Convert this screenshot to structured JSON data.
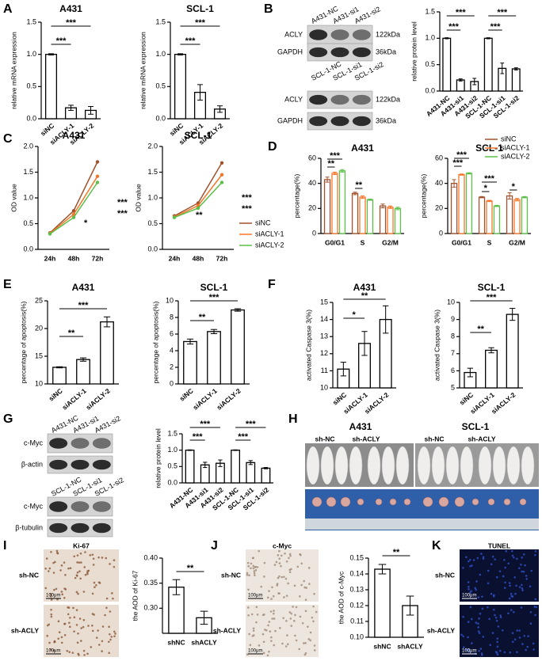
{
  "panel_labels": [
    "A",
    "B",
    "C",
    "D",
    "E",
    "F",
    "G",
    "H",
    "I",
    "J",
    "K"
  ],
  "blots": [
    {
      "lanes": [
        "A431-NC",
        "A431-si1",
        "A431-si2"
      ],
      "rows": [
        {
          "name": "ACLY",
          "size": "122kDa"
        },
        {
          "name": "GAPDH",
          "size": "36kDa"
        }
      ]
    },
    {
      "lanes": [
        "SCL-1-NC",
        "SCL-1-si1",
        "SCL-1-si2"
      ],
      "rows": [
        {
          "name": "ACLY",
          "size": "122kDa"
        },
        {
          "name": "GAPDH",
          "size": "36kDa"
        }
      ]
    },
    {
      "lanes": [
        "A431-NC",
        "A431-si1",
        "A431-si2"
      ],
      "rows": [
        {
          "name": "c-Myc"
        },
        {
          "name": "β-actin"
        }
      ]
    },
    {
      "lanes": [
        "SCL-1-NC",
        "SCL-1-si1",
        "SCL-1-si2"
      ],
      "rows": [
        {
          "name": "c-Myc"
        },
        {
          "name": "β-tubulin"
        }
      ]
    }
  ],
  "xenograft": [
    {
      "title": "A431",
      "conditions": [
        "sh-NC",
        "sh-ACLY"
      ]
    },
    {
      "title": "SCL-1",
      "conditions": [
        "sh-NC",
        "sh-ACLY"
      ]
    }
  ],
  "stains": [
    {
      "title": "Ki-67",
      "rows": [
        "sh-NC",
        "sh-ACLY"
      ],
      "scale": "100μm"
    },
    {
      "title": "c-Myc",
      "rows": [
        "sh-NC",
        "sh-ACLY"
      ],
      "scale": "100μm"
    },
    {
      "title": "TUNEL",
      "rows": [
        "sh-NC",
        "sh-ACLY"
      ],
      "scale": "100μm"
    }
  ],
  "chart_data": [
    {
      "type": "bar",
      "title": "A431",
      "y_label": "relative mRNA expression",
      "categories": [
        "siNC",
        "siACLY-1",
        "siACLY-2"
      ],
      "values": [
        1.0,
        0.17,
        0.13
      ],
      "errors": [
        0.01,
        0.04,
        0.06
      ],
      "color": "#000000",
      "ylim": [
        0,
        1.5
      ],
      "yticks": [
        {
          "value": 0,
          "label": "0.0"
        },
        {
          "value": 0.5,
          "label": "0.5"
        },
        {
          "value": 1,
          "label": "1.0"
        },
        {
          "value": 1.5,
          "label": "1.5"
        }
      ],
      "annotations": [
        "***",
        "***"
      ]
    },
    {
      "type": "bar",
      "title": "SCL-1",
      "y_label": "relative mRNA expression",
      "categories": [
        "siNC",
        "siACLY-1",
        "siACLY-2"
      ],
      "values": [
        1.0,
        0.41,
        0.15
      ],
      "errors": [
        0.01,
        0.12,
        0.05
      ],
      "color": "#000000",
      "ylim": [
        0,
        1.5
      ],
      "yticks": [
        {
          "value": 0,
          "label": "0.0"
        },
        {
          "value": 0.5,
          "label": "0.5"
        },
        {
          "value": 1,
          "label": "1.0"
        },
        {
          "value": 1.5,
          "label": "1.5"
        }
      ],
      "annotations": [
        "***",
        "***"
      ]
    },
    {
      "type": "bar",
      "y_label": "relative protein level",
      "categories": [
        "A431-NC",
        "A431-si1",
        "A431-si2",
        "SCL-1-NC",
        "SCL-1-si1",
        "SCL-1-si2"
      ],
      "values": [
        1.0,
        0.21,
        0.18,
        1.0,
        0.43,
        0.42
      ],
      "errors": [
        0.01,
        0.02,
        0.06,
        0.01,
        0.1,
        0.02
      ],
      "color": "#000000",
      "ylim": [
        0,
        1.5
      ],
      "yticks": [
        {
          "value": 0,
          "label": "0.0"
        },
        {
          "value": 0.5,
          "label": "0.5"
        },
        {
          "value": 1,
          "label": "1.0"
        },
        {
          "value": 1.5,
          "label": "1.5"
        }
      ],
      "annotations": [
        "***",
        "***",
        "***",
        "***"
      ]
    },
    {
      "type": "line",
      "title": "A431",
      "y_label": "OD value",
      "categories": [
        "24h",
        "48h",
        "72h"
      ],
      "series": [
        {
          "name": "siNC",
          "color": "#a0522d",
          "values": [
            0.32,
            0.75,
            1.7
          ]
        },
        {
          "name": "siACLY-1",
          "color": "#f4762a",
          "values": [
            0.31,
            0.68,
            1.42
          ]
        },
        {
          "name": "siACLY-2",
          "color": "#5cbf4a",
          "values": [
            0.3,
            0.62,
            1.3
          ]
        }
      ],
      "ylim": [
        0,
        2
      ],
      "yticks": [
        {
          "value": 0,
          "label": "0.0"
        },
        {
          "value": 0.5,
          "label": "0.5"
        },
        {
          "value": 1,
          "label": "1.0"
        },
        {
          "value": 1.5,
          "label": "1.5"
        },
        {
          "value": 2,
          "label": "2.0"
        }
      ],
      "annotations": [
        "*",
        "***",
        "***"
      ]
    },
    {
      "type": "line",
      "title": "SCL-1",
      "y_label": "OD value",
      "categories": [
        "24h",
        "48h",
        "72h"
      ],
      "series": [
        {
          "name": "siNC",
          "color": "#a0522d",
          "values": [
            0.65,
            0.9,
            1.68
          ]
        },
        {
          "name": "siACLY-1",
          "color": "#f4762a",
          "values": [
            0.63,
            0.85,
            1.45
          ]
        },
        {
          "name": "siACLY-2",
          "color": "#5cbf4a",
          "values": [
            0.62,
            0.8,
            1.3
          ]
        }
      ],
      "ylim": [
        0,
        2
      ],
      "yticks": [
        {
          "value": 0,
          "label": "0.0"
        },
        {
          "value": 0.5,
          "label": "0.5"
        },
        {
          "value": 1,
          "label": "1.0"
        },
        {
          "value": 1.5,
          "label": "1.5"
        },
        {
          "value": 2,
          "label": "2.0"
        }
      ],
      "annotations": [
        "**",
        "***",
        "***"
      ],
      "legend": "right"
    },
    {
      "type": "bar",
      "title": "A431",
      "y_label": "percentage(%)",
      "categories": [
        "G0/G1",
        "S",
        "G2/M"
      ],
      "series": [
        {
          "name": "siNC",
          "color": "#a0522d",
          "values": [
            43,
            32,
            22
          ],
          "errors": [
            2,
            1,
            1.5
          ]
        },
        {
          "name": "siACLY-1",
          "color": "#f4762a",
          "values": [
            48,
            29,
            21
          ],
          "errors": [
            1,
            1,
            1
          ]
        },
        {
          "name": "siACLY-2",
          "color": "#5cbf4a",
          "values": [
            50,
            27,
            20
          ],
          "errors": [
            1,
            0.5,
            1
          ]
        }
      ],
      "ylim": [
        0,
        60
      ],
      "yticks": [
        0,
        20,
        40,
        60
      ],
      "annotations": [
        "**",
        "***",
        "**"
      ]
    },
    {
      "type": "bar",
      "title": "SCL-1",
      "y_label": "percentage(%)",
      "categories": [
        "G0/G1",
        "S",
        "G2/M"
      ],
      "series": [
        {
          "name": "siNC",
          "color": "#a0522d",
          "values": [
            40,
            29,
            30
          ],
          "errors": [
            3,
            0.5,
            2.5
          ]
        },
        {
          "name": "siACLY-1",
          "color": "#f4762a",
          "values": [
            47,
            26,
            27
          ],
          "errors": [
            0.5,
            0.5,
            1
          ]
        },
        {
          "name": "siACLY-2",
          "color": "#5cbf4a",
          "values": [
            48,
            22,
            29
          ],
          "errors": [
            0.5,
            0.5,
            0.5
          ]
        }
      ],
      "ylim": [
        0,
        60
      ],
      "yticks": [
        0,
        20,
        40,
        60
      ],
      "annotations": [
        "***",
        "***",
        "*",
        "***",
        "*"
      ],
      "legend": "upper right"
    },
    {
      "type": "bar",
      "title": "A431",
      "y_label": "percentage of apoptosis(%)",
      "categories": [
        "siNC",
        "siACLY-1",
        "siACLY-2"
      ],
      "values": [
        13,
        14.4,
        21.2
      ],
      "errors": [
        0.1,
        0.3,
        0.9
      ],
      "color": "#000000",
      "ylim": [
        10,
        25
      ],
      "yticks": [
        10,
        15,
        20,
        25
      ],
      "annotations": [
        "**",
        "***"
      ]
    },
    {
      "type": "bar",
      "title": "SCL-1",
      "y_label": "percentage of apoptosis(%)",
      "categories": [
        "siNC",
        "siACLY-1",
        "siACLY-2"
      ],
      "values": [
        5.1,
        6.3,
        8.9
      ],
      "errors": [
        0.3,
        0.25,
        0.15
      ],
      "color": "#000000",
      "ylim": [
        0,
        10
      ],
      "yticks": [
        0,
        2,
        4,
        6,
        8,
        10
      ],
      "annotations": [
        "**",
        "***"
      ]
    },
    {
      "type": "bar",
      "title": "A431",
      "y_label": "activated Caspase 3(%)",
      "categories": [
        "siNC",
        "siACLY-1",
        "siACLY-2"
      ],
      "values": [
        11.1,
        12.6,
        14.0
      ],
      "errors": [
        0.4,
        0.7,
        0.8
      ],
      "color": "#000000",
      "ylim": [
        10,
        15
      ],
      "yticks": [
        10,
        11,
        12,
        13,
        14,
        15
      ],
      "annotations": [
        "*",
        "**"
      ]
    },
    {
      "type": "bar",
      "title": "SCL-1",
      "y_label": "activated Caspase 3(%)",
      "categories": [
        "siNC",
        "siACLY-1",
        "siACLY-2"
      ],
      "values": [
        5.9,
        7.2,
        9.3
      ],
      "errors": [
        0.25,
        0.15,
        0.35
      ],
      "color": "#000000",
      "ylim": [
        5,
        10
      ],
      "yticks": [
        5,
        6,
        7,
        8,
        9,
        10
      ],
      "annotations": [
        "**",
        "***"
      ]
    },
    {
      "type": "bar",
      "y_label": "relative protein level",
      "categories": [
        "A431-NC",
        "A431-si1",
        "A431-si2",
        "SCL-1-NC",
        "SCL-1-si1",
        "SCL-1-si2"
      ],
      "values": [
        1.0,
        0.55,
        0.6,
        1.0,
        0.62,
        0.45
      ],
      "errors": [
        0.01,
        0.08,
        0.1,
        0.01,
        0.06,
        0.02
      ],
      "color": "#000000",
      "ylim": [
        0,
        1.5
      ],
      "yticks": [
        {
          "value": 0,
          "label": "0.0"
        },
        {
          "value": 0.5,
          "label": "0.5"
        },
        {
          "value": 1,
          "label": "1.0"
        },
        {
          "value": 1.5,
          "label": "1.5"
        }
      ],
      "annotations": [
        "***",
        "***",
        "***",
        "***"
      ]
    },
    {
      "type": "bar",
      "y_label": "the AOD of Ki-67",
      "categories": [
        "shNC",
        "shACLY"
      ],
      "values": [
        0.342,
        0.281
      ],
      "errors": [
        0.015,
        0.013
      ],
      "color": "#000000",
      "ylim": [
        0.25,
        0.4
      ],
      "yticks": [
        {
          "value": 0.3,
          "label": "0.30"
        },
        {
          "value": 0.35,
          "label": "0.35"
        },
        {
          "value": 0.4,
          "label": "0.40"
        }
      ],
      "annotations": [
        "**"
      ]
    },
    {
      "type": "bar",
      "y_label": "the AOD of c-Myc",
      "categories": [
        "shNC",
        "shACLY"
      ],
      "values": [
        0.143,
        0.12
      ],
      "errors": [
        0.003,
        0.006
      ],
      "color": "#000000",
      "ylim": [
        0.1,
        0.15
      ],
      "yticks": [
        {
          "value": 0.1,
          "label": "0.10"
        },
        {
          "value": 0.11,
          "label": "0.11"
        },
        {
          "value": 0.12,
          "label": "0.12"
        },
        {
          "value": 0.13,
          "label": "0.13"
        },
        {
          "value": 0.14,
          "label": "0.14"
        },
        {
          "value": 0.15,
          "label": "0.15"
        }
      ],
      "annotations": [
        "**"
      ]
    }
  ]
}
